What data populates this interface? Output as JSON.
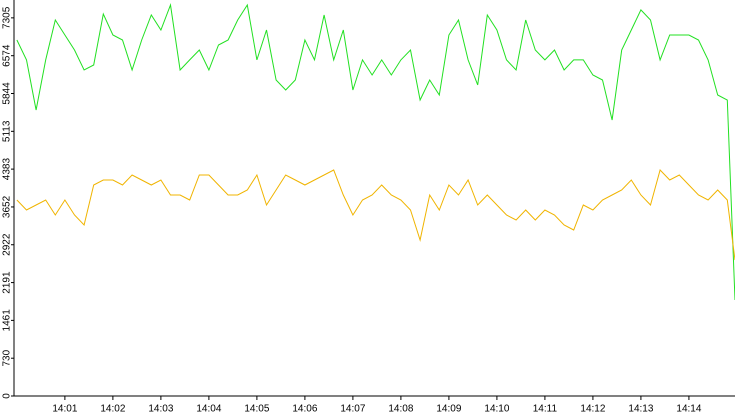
{
  "chart_data": {
    "type": "line",
    "x": [
      0,
      0.2,
      0.4,
      0.6,
      0.8,
      1.0,
      1.2,
      1.4,
      1.6,
      1.8,
      2.0,
      2.2,
      2.4,
      2.6,
      2.8,
      3.0,
      3.2,
      3.4,
      3.6,
      3.8,
      4.0,
      4.2,
      4.4,
      4.6,
      4.8,
      5.0,
      5.2,
      5.4,
      5.6,
      5.8,
      6.0,
      6.2,
      6.4,
      6.6,
      6.8,
      7.0,
      7.2,
      7.4,
      7.6,
      7.8,
      8.0,
      8.2,
      8.4,
      8.6,
      8.8,
      9.0,
      9.2,
      9.4,
      9.6,
      9.8,
      10.0,
      10.2,
      10.4,
      10.6,
      10.8,
      11.0,
      11.2,
      11.4,
      11.6,
      11.8,
      12.0,
      12.2,
      12.4,
      12.6,
      12.8,
      13.0,
      13.2,
      13.4,
      13.6,
      13.8,
      14.0,
      14.2,
      14.4,
      14.6,
      14.8,
      14.96
    ],
    "series": [
      {
        "color": "#22e022",
        "values": [
          6878,
          6492,
          5525,
          6492,
          7264,
          6974,
          6685,
          6298,
          6395,
          7380,
          6974,
          6878,
          6298,
          6878,
          7361,
          7071,
          7554,
          6298,
          6492,
          6685,
          6298,
          6781,
          6878,
          7264,
          7554,
          6492,
          7071,
          6105,
          5912,
          6105,
          6878,
          6492,
          7361,
          6492,
          7071,
          5912,
          6492,
          6202,
          6492,
          6202,
          6492,
          6685,
          5719,
          6105,
          5815,
          6974,
          7264,
          6492,
          6009,
          7361,
          7071,
          6492,
          6298,
          7264,
          6685,
          6492,
          6685,
          6298,
          6492,
          6492,
          6202,
          6105,
          5332,
          6685,
          7071,
          7458,
          7264,
          6492,
          6974,
          6974,
          6974,
          6878,
          6492,
          5815,
          5719,
          1855
        ]
      },
      {
        "color": "#f0b400",
        "values": [
          3787,
          3594,
          3690,
          3787,
          3497,
          3787,
          3497,
          3304,
          4077,
          4173,
          4173,
          4077,
          4270,
          4173,
          4077,
          4173,
          3883,
          3883,
          3787,
          4270,
          4270,
          4077,
          3883,
          3883,
          3980,
          4270,
          3690,
          3980,
          4270,
          4173,
          4077,
          4173,
          4270,
          4366,
          3883,
          3497,
          3787,
          3883,
          4077,
          3883,
          3787,
          3594,
          3014,
          3883,
          3594,
          4077,
          3883,
          4173,
          3690,
          3883,
          3690,
          3497,
          3400,
          3594,
          3400,
          3594,
          3497,
          3304,
          3207,
          3690,
          3594,
          3787,
          3883,
          3980,
          4173,
          3883,
          3690,
          4366,
          4173,
          4270,
          4077,
          3883,
          3787,
          3980,
          3787,
          2628
        ]
      }
    ],
    "xlim": [
      -0.06,
      14.96
    ],
    "xticks": [
      {
        "value": 1,
        "label": "14:01"
      },
      {
        "value": 2,
        "label": "14:02"
      },
      {
        "value": 3,
        "label": "14:03"
      },
      {
        "value": 4,
        "label": "14:04"
      },
      {
        "value": 5,
        "label": "14:05"
      },
      {
        "value": 6,
        "label": "14:06"
      },
      {
        "value": 7,
        "label": "14:07"
      },
      {
        "value": 8,
        "label": "14:08"
      },
      {
        "value": 9,
        "label": "14:09"
      },
      {
        "value": 10,
        "label": "14:10"
      },
      {
        "value": 11,
        "label": "14:11"
      },
      {
        "value": 12,
        "label": "14:12"
      },
      {
        "value": 13,
        "label": "14:13"
      },
      {
        "value": 14,
        "label": "14:14"
      }
    ],
    "ylim": [
      0,
      7650
    ],
    "yticks": [
      0,
      730,
      1461,
      2191,
      2922,
      3652,
      4383,
      5113,
      5844,
      6574,
      7305
    ]
  }
}
